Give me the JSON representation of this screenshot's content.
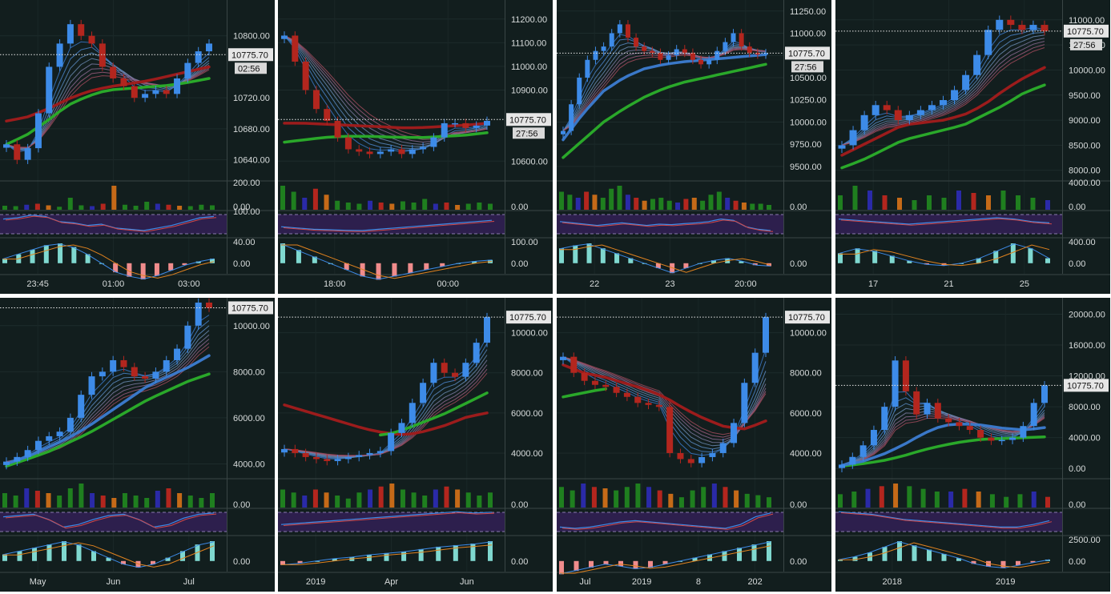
{
  "layout_grid": "4x2",
  "current_price": "10775.70",
  "chart_data": [
    {
      "id": "p1",
      "type": "candlestick",
      "interval": "intraday",
      "price_ticks": [
        "10800.00",
        "10720.00",
        "10680.00",
        "10640.00"
      ],
      "price_values": [
        10800,
        10720,
        10680,
        10640
      ],
      "vol_ticks": [
        "200.00",
        "0.00"
      ],
      "rsi_ticks": [
        "100.00"
      ],
      "macd_ticks": [
        "40.00",
        "0.00"
      ],
      "x_ticks": [
        "23:45",
        "01:00",
        "03:00"
      ],
      "countdown": "02:56",
      "ylim": [
        10620,
        10840
      ],
      "close_path": [
        10660,
        10640,
        10655,
        10700,
        10760,
        10790,
        10815,
        10800,
        10790,
        10760,
        10745,
        10735,
        10720,
        10725,
        10730,
        10725,
        10745,
        10765,
        10780,
        10790
      ],
      "ema_series": [
        {
          "color": "#2aa82a",
          "values": [
            10660,
            10672,
            10690,
            10710,
            10722,
            10730,
            10732,
            10734,
            10736,
            10740,
            10745
          ]
        },
        {
          "color": "#9c1c1c",
          "values": [
            10690,
            10695,
            10705,
            10718,
            10728,
            10734,
            10738,
            10742,
            10748,
            10754,
            10760
          ]
        }
      ],
      "volume": [
        20,
        18,
        25,
        30,
        22,
        15,
        60,
        22,
        18,
        30,
        120,
        25,
        20,
        40,
        30,
        25,
        20,
        18,
        25,
        22
      ],
      "rsi": [
        70,
        75,
        85,
        80,
        60,
        55,
        45,
        50,
        35,
        30,
        25,
        35,
        45,
        60,
        75,
        80
      ],
      "macd_hist": [
        5,
        10,
        15,
        20,
        22,
        18,
        10,
        0,
        -10,
        -15,
        -18,
        -14,
        -8,
        -2,
        2,
        5
      ]
    },
    {
      "id": "p2",
      "type": "candlestick",
      "interval": "intraday",
      "price_ticks": [
        "11200.00",
        "11100.00",
        "11000.00",
        "10900.00",
        "10600.00"
      ],
      "price_values": [
        11200,
        11100,
        11000,
        10900,
        10600
      ],
      "vol_ticks": [
        "0.00"
      ],
      "rsi_ticks": [],
      "macd_ticks": [
        "100.00",
        "0.00"
      ],
      "x_ticks": [
        "18:00",
        "00:00"
      ],
      "countdown": "27:56",
      "ylim": [
        10540,
        11260
      ],
      "close_path": [
        11130,
        11020,
        10900,
        10820,
        10770,
        10700,
        10650,
        10640,
        10630,
        10640,
        10650,
        10630,
        10650,
        10660,
        10700,
        10760,
        10760,
        10740,
        10750,
        10770
      ],
      "ema_series": [
        {
          "color": "#2aa82a",
          "values": [
            10680,
            10690,
            10700,
            10705,
            10705,
            10702,
            10700,
            10700,
            10705,
            10710,
            10720
          ]
        },
        {
          "color": "#9c1c1c",
          "values": [
            10760,
            10760,
            10756,
            10752,
            10748,
            10744,
            10740,
            10742,
            10748,
            10752,
            10760
          ]
        }
      ],
      "volume": [
        40,
        30,
        20,
        35,
        25,
        15,
        12,
        10,
        15,
        12,
        10,
        14,
        12,
        18,
        10,
        12,
        8,
        10,
        12,
        10
      ],
      "rsi": [
        40,
        35,
        30,
        28,
        26,
        25,
        30,
        35,
        40,
        45,
        50,
        55,
        60,
        65
      ],
      "macd_hist": [
        30,
        20,
        10,
        0,
        -10,
        -20,
        -25,
        -20,
        -15,
        -10,
        -5,
        0,
        3,
        5
      ]
    },
    {
      "id": "p3",
      "type": "candlestick",
      "interval": "hourly",
      "price_ticks": [
        "11250.00",
        "11000.00",
        "10750.00",
        "10500.00",
        "10250.00",
        "10000.00",
        "9750.00",
        "9500.00"
      ],
      "price_values": [
        11250,
        11000,
        10750,
        10500,
        10250,
        10000,
        9750,
        9500
      ],
      "vol_ticks": [
        "0.00"
      ],
      "rsi_ticks": [],
      "macd_ticks": [
        "0.00"
      ],
      "x_ticks": [
        "22",
        "23",
        "20:00"
      ],
      "countdown": "27:56",
      "ylim": [
        9400,
        11320
      ],
      "close_path": [
        9900,
        10200,
        10500,
        10700,
        10800,
        10850,
        11000,
        11100,
        10950,
        10850,
        10800,
        10780,
        10700,
        10750,
        10820,
        10780,
        10700,
        10650,
        10700,
        10800,
        10900,
        11000,
        10850,
        10780,
        10760,
        10775
      ],
      "ema_series": [
        {
          "color": "#2aa82a",
          "values": [
            9600,
            9800,
            10000,
            10150,
            10280,
            10380,
            10450,
            10500,
            10550,
            10600,
            10650
          ]
        },
        {
          "color": "#3a78c8",
          "values": [
            9800,
            10100,
            10350,
            10500,
            10600,
            10650,
            10680,
            10700,
            10720,
            10740,
            10760
          ]
        }
      ],
      "volume": [
        30,
        25,
        20,
        30,
        25,
        20,
        35,
        40,
        25,
        20,
        15,
        18,
        20,
        15,
        12,
        18,
        20,
        15,
        25,
        30,
        20,
        15,
        12,
        10,
        10,
        8
      ],
      "rsi": [
        60,
        55,
        50,
        45,
        50,
        55,
        50,
        45,
        50,
        48,
        52,
        55,
        60,
        70,
        65,
        40,
        30,
        25
      ],
      "macd_hist": [
        15,
        18,
        20,
        15,
        10,
        5,
        0,
        -5,
        -10,
        -5,
        0,
        3,
        5,
        2,
        -2,
        -3
      ]
    },
    {
      "id": "p4",
      "type": "candlestick",
      "interval": "4-hour",
      "price_ticks": [
        "11000.00",
        "10500.00",
        "10000.00",
        "9500.00",
        "9000.00",
        "8500.00",
        "8000.00"
      ],
      "price_values": [
        11000,
        10500,
        10000,
        9500,
        9000,
        8500,
        8000
      ],
      "vol_ticks": [
        "4000.00",
        "0.00"
      ],
      "rsi_ticks": [],
      "macd_ticks": [
        "400.00",
        "0.00"
      ],
      "x_ticks": [
        "17",
        "21",
        "25"
      ],
      "countdown": "27:56",
      "ylim": [
        7900,
        11300
      ],
      "close_path": [
        8500,
        8800,
        9100,
        9300,
        9200,
        9000,
        9100,
        9200,
        9300,
        9400,
        9600,
        9900,
        10300,
        10800,
        11000,
        10900,
        10800,
        10900,
        10775
      ],
      "ema_series": [
        {
          "color": "#2aa82a",
          "values": [
            8050,
            8200,
            8400,
            8600,
            8700,
            8800,
            8900,
            9100,
            9300,
            9550,
            9700
          ]
        },
        {
          "color": "#9c1c1c",
          "values": [
            8300,
            8500,
            8700,
            8900,
            8950,
            9000,
            9100,
            9300,
            9600,
            9850,
            10050
          ]
        }
      ],
      "volume": [
        30,
        50,
        40,
        30,
        25,
        20,
        30,
        25,
        40,
        35,
        30,
        40,
        30,
        25,
        20
      ],
      "rsi": [
        70,
        65,
        60,
        55,
        50,
        55,
        60,
        65,
        70,
        75,
        70,
        60,
        55
      ],
      "macd_hist": [
        40,
        60,
        50,
        30,
        10,
        -5,
        -10,
        0,
        20,
        50,
        80,
        60,
        20
      ]
    },
    {
      "id": "p5",
      "type": "candlestick",
      "interval": "daily",
      "price_ticks": [
        "10000.00",
        "8000.00",
        "6000.00",
        "4000.00"
      ],
      "price_values": [
        10000,
        8000,
        6000,
        4000
      ],
      "vol_ticks": [
        "0.00"
      ],
      "rsi_ticks": [],
      "macd_ticks": [
        "0.00"
      ],
      "x_ticks": [
        "May",
        "Jun",
        "Jul"
      ],
      "countdown": "",
      "ylim": [
        3600,
        11000
      ],
      "close_path": [
        4100,
        4300,
        4600,
        5000,
        5200,
        5400,
        6000,
        7000,
        7800,
        8000,
        8500,
        8200,
        7800,
        7700,
        8000,
        8500,
        9000,
        10000,
        11000,
        10775
      ],
      "ema_series": [
        {
          "color": "#2aa82a",
          "values": [
            3900,
            4200,
            4500,
            4900,
            5300,
            5800,
            6300,
            6800,
            7200,
            7600,
            7900
          ]
        },
        {
          "color": "#3a78c8",
          "values": [
            4000,
            4300,
            4700,
            5100,
            5600,
            6200,
            6800,
            7400,
            7800,
            8200,
            8700
          ]
        }
      ],
      "volume": [
        30,
        25,
        40,
        35,
        30,
        25,
        40,
        50,
        30,
        25,
        20,
        30,
        25,
        20,
        35,
        40,
        30,
        25,
        20,
        30
      ],
      "rsi": [
        70,
        75,
        80,
        60,
        30,
        40,
        60,
        75,
        80,
        60,
        30,
        40,
        65,
        80,
        85
      ],
      "macd_hist": [
        10,
        15,
        20,
        25,
        30,
        25,
        15,
        5,
        -5,
        -10,
        -5,
        5,
        15,
        25,
        30
      ]
    },
    {
      "id": "p6",
      "type": "candlestick",
      "interval": "weekly",
      "price_ticks": [
        "10000.00",
        "8000.00",
        "6000.00",
        "4000.00"
      ],
      "price_values": [
        10000,
        8000,
        6000,
        4000
      ],
      "vol_ticks": [
        "0.00"
      ],
      "rsi_ticks": [],
      "macd_ticks": [
        "0.00"
      ],
      "x_ticks": [
        "2019",
        "Apr",
        "Jun"
      ],
      "countdown": "",
      "ylim": [
        3000,
        11500
      ],
      "close_path": [
        4200,
        4000,
        3800,
        3700,
        3600,
        3700,
        3800,
        3900,
        4000,
        4100,
        5000,
        5500,
        6500,
        7500,
        8500,
        8000,
        7800,
        8500,
        9500,
        10775
      ],
      "ema_series": [
        {
          "color": "#9c1c1c",
          "values": [
            6400,
            6100,
            5800,
            5500,
            5200,
            5000,
            4900,
            5100,
            5400,
            5800,
            6000
          ]
        },
        {
          "color": "#2aa82a",
          "values": [
            null,
            null,
            null,
            null,
            null,
            4900,
            5200,
            5600,
            6000,
            6500,
            7000
          ]
        }
      ],
      "volume": [
        30,
        25,
        20,
        30,
        25,
        20,
        15,
        25,
        30,
        35,
        40,
        30,
        25,
        20,
        30,
        35,
        30,
        25,
        20,
        25
      ],
      "rsi": [
        40,
        45,
        50,
        55,
        60,
        65,
        70,
        75,
        80,
        85,
        90,
        85,
        88
      ],
      "macd_hist": [
        -5,
        -3,
        0,
        3,
        5,
        8,
        10,
        12,
        15,
        18,
        20,
        22,
        25
      ]
    },
    {
      "id": "p7",
      "type": "candlestick",
      "interval": "weekly",
      "price_ticks": [
        "10000.00",
        "8000.00",
        "6000.00",
        "4000.00"
      ],
      "price_values": [
        10000,
        8000,
        6000,
        4000
      ],
      "vol_ticks": [
        "0.00"
      ],
      "rsi_ticks": [],
      "macd_ticks": [
        "0.00"
      ],
      "x_ticks": [
        "Jul",
        "2019",
        "8",
        "202"
      ],
      "countdown": "",
      "ylim": [
        3000,
        11500
      ],
      "close_path": [
        8800,
        8000,
        7600,
        7400,
        7300,
        7000,
        6800,
        6500,
        6400,
        6300,
        4000,
        3700,
        3500,
        3800,
        4000,
        4500,
        5500,
        7500,
        9000,
        10775
      ],
      "ema_series": [
        {
          "color": "#2aa82a",
          "values": [
            6800,
            7000,
            7200,
            null,
            null,
            null,
            null,
            null,
            null,
            null,
            6000
          ]
        },
        {
          "color": "#9c1c1c",
          "values": [
            8400,
            8000,
            7800,
            7500,
            7200,
            6800,
            6200,
            5700,
            5300,
            5200,
            5600
          ]
        }
      ],
      "volume": [
        30,
        25,
        35,
        30,
        28,
        25,
        30,
        35,
        30,
        25,
        20,
        15,
        25,
        30,
        35,
        30,
        25,
        20,
        18,
        15
      ],
      "rsi": [
        30,
        25,
        30,
        40,
        50,
        55,
        50,
        45,
        40,
        35,
        30,
        25,
        40,
        70,
        85
      ],
      "macd_hist": [
        -20,
        -15,
        -10,
        -5,
        -8,
        -12,
        -10,
        -5,
        0,
        5,
        10,
        15,
        20,
        25,
        30
      ]
    },
    {
      "id": "p8",
      "type": "candlestick",
      "interval": "monthly",
      "price_ticks": [
        "20000.00",
        "16000.00",
        "12000.00",
        "8000.00",
        "4000.00",
        "0.00"
      ],
      "price_values": [
        20000,
        16000,
        12000,
        8000,
        4000,
        0
      ],
      "vol_ticks": [
        "0.00"
      ],
      "rsi_ticks": [],
      "macd_ticks": [
        "2500.00",
        "0.00"
      ],
      "x_ticks": [
        "2018",
        "2019"
      ],
      "countdown": "",
      "ylim": [
        -600,
        21500
      ],
      "close_path": [
        500,
        1500,
        3000,
        5000,
        8000,
        14000,
        10000,
        7000,
        8500,
        6500,
        6000,
        5500,
        5000,
        4000,
        3600,
        3700,
        4000,
        5500,
        8500,
        10775
      ],
      "ema_series": [
        {
          "color": "#2aa82a",
          "values": [
            300,
            600,
            1000,
            1600,
            2400,
            3000,
            3500,
            3800,
            3900,
            4000,
            4100
          ]
        },
        {
          "color": "#3a78c8",
          "values": [
            400,
            900,
            1800,
            3000,
            4500,
            5600,
            5800,
            5600,
            5200,
            5000,
            5300
          ]
        }
      ],
      "volume": [
        25,
        30,
        35,
        40,
        45,
        40,
        35,
        30,
        30,
        35,
        30,
        25,
        20,
        25,
        30,
        20
      ],
      "rsi": [
        90,
        85,
        80,
        70,
        60,
        55,
        50,
        45,
        40,
        35,
        30,
        30,
        40,
        55
      ],
      "macd_hist": [
        100,
        300,
        600,
        1000,
        1400,
        1100,
        800,
        500,
        200,
        -200,
        -400,
        -500,
        -300,
        -100,
        100
      ]
    }
  ]
}
